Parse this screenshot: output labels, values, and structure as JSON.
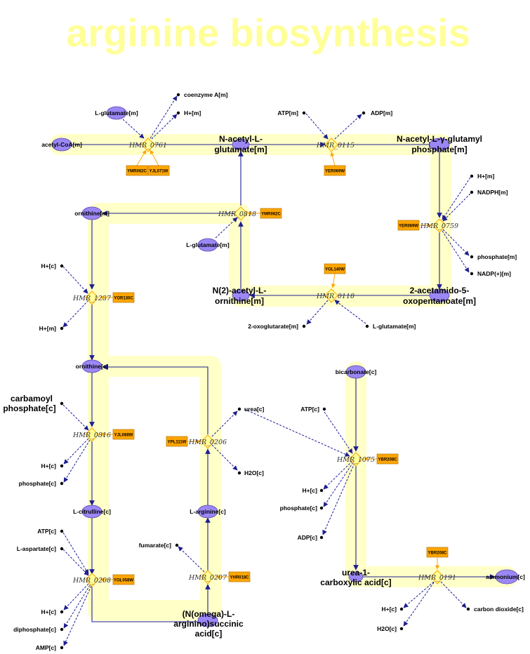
{
  "title": "arginine biosynthesis",
  "colors": {
    "pathway_band": "#ffffc8",
    "metabolite": "#9b87f5",
    "gene_box": "#ffa500",
    "reaction_node": "#ffff99",
    "edge": "#1f1f8f",
    "side_edge": "#1a1a99"
  },
  "metabolites": {
    "acetyl_coa_m": "acetyl-CoA[m]",
    "l_glutamate_m_top": "L-glutamate[m]",
    "coenzyme_a_m": "coenzyme A[m]",
    "h_m_top": "H+[m]",
    "n_acetyl_l_glutamate_m_line1": "N-acetyl-L-",
    "n_acetyl_l_glutamate_m_line2": "glutamate[m]",
    "atp_m": "ATP[m]",
    "adp_m": "ADP[m]",
    "n_acetyl_gamma_line1": "N-acetyl-L-γ-glutamyl",
    "n_acetyl_gamma_line2": "phosphate[m]",
    "h_m_right": "H+[m]",
    "nadph_m": "NADPH[m]",
    "phosphate_m": "phosphate[m]",
    "nadp_m": "NADP(+)[m]",
    "ornithine_m": "ornithine[m]",
    "l_glutamate_m_mid": "L-glutamate[m]",
    "n2_acetyl_line1": "N(2)-acetyl-L-",
    "n2_acetyl_line2": "ornithine[m]",
    "acetamido_line1": "2-acetamido-5-",
    "acetamido_line2": "oxopentanoate[m]",
    "oxoglutarate_m": "2-oxoglutarate[m]",
    "l_glutamate_m_bottom": "L-glutamate[m]",
    "h_c_1237": "H+[c]",
    "h_m_1237": "H+[m]",
    "ornithine_c": "ornithine[c]",
    "carbamoyl_line1": "carbamoyl",
    "carbamoyl_line2": "phosphate[c]",
    "h_c_0816": "H+[c]",
    "phosphate_c_0816": "phosphate[c]",
    "l_citrulline_c": "L-citrulline[c]",
    "atp_c_0208": "ATP[c]",
    "l_aspartate_c": "L-aspartate[c]",
    "h_c_0208": "H+[c]",
    "diphosphate_c": "diphosphate[c]",
    "amp_c": "AMP[c]",
    "urea_c": "urea[c]",
    "h2o_c_0206": "H2O[c]",
    "l_arginine_c": "L-arginine[c]",
    "fumarate_c": "fumarate[c]",
    "argsucc_line1": "(N(omega)-L-",
    "argsucc_line2": "arginino)succinic",
    "argsucc_line3": "acid[c]",
    "bicarbonate_c": "bicarbonate[c]",
    "atp_c_1075": "ATP[c]",
    "h_c_1075": "H+[c]",
    "phosphate_c_1075": "phosphate[c]",
    "adp_c": "ADP[c]",
    "urea1_line1": "urea-1-",
    "urea1_line2": "carboxylic acid[c]",
    "ammonium_c": "ammonium[c]",
    "h_c_0191": "H+[c]",
    "h2o_c_0191": "H2O[c]",
    "co2_c": "carbon dioxide[c]"
  },
  "reactions": {
    "r0761": "HMR_0761",
    "r0115": "HMR_0115",
    "r0759": "HMR_0759",
    "r0818": "HMR_0818",
    "r0118": "HMR_0118",
    "r1237": "HMR_1237",
    "r0816": "HMR_0816",
    "r0206": "HMR_0206",
    "r0208": "HMR_0208",
    "r0207": "HMR_0207",
    "r1075": "HMR_1075",
    "r0191": "HMR_0191"
  },
  "genes": {
    "g0761a": "YMR062C",
    "g0761b": "YJL071W",
    "g0115": "YER069W",
    "g0759": "YER069W",
    "g0818": "YMR062C",
    "g0118": "YOL140W",
    "g1237": "YOR130C",
    "g0816": "YJL088W",
    "g0206": "YPL111W",
    "g0208": "YOL058W",
    "g0207": "YHR018C",
    "g1075": "YBR208C",
    "g0191": "YBR208C"
  }
}
